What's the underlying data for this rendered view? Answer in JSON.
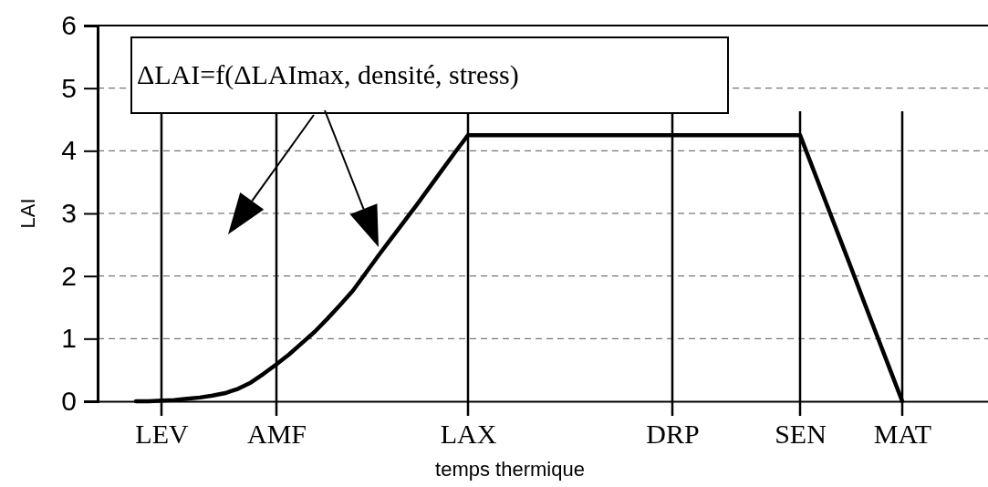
{
  "chart_data": {
    "type": "line",
    "xlabel": "temps thermique",
    "ylabel": "LAI",
    "categories": [
      null,
      null,
      null,
      null,
      null,
      "LEV",
      null,
      null,
      null,
      null,
      null,
      null,
      null,
      null,
      "AMF",
      null,
      null,
      null,
      null,
      null,
      null,
      null,
      null,
      null,
      null,
      null,
      null,
      null,
      null,
      "LAX",
      null,
      null,
      null,
      null,
      null,
      null,
      null,
      null,
      null,
      null,
      null,
      null,
      null,
      null,
      null,
      "DRP",
      null,
      null,
      null,
      null,
      null,
      null,
      null,
      null,
      null,
      "SEN",
      null,
      null,
      null,
      null,
      null,
      null,
      null,
      "MAT",
      null,
      null,
      null,
      null,
      null,
      null,
      null
    ],
    "ylim": [
      0,
      6
    ],
    "yticks": [
      0,
      1,
      2,
      3,
      4,
      5,
      6
    ],
    "grid": true,
    "marker": "none",
    "line_style": "solid",
    "series": [
      {
        "color": "#000000",
        "values": [
          null,
          null,
          null,
          0,
          0,
          0.01,
          0.02,
          0.04,
          0.06,
          0.09,
          0.13,
          0.2,
          0.3,
          0.44,
          0.59,
          0.75,
          0.93,
          1.11,
          1.32,
          1.54,
          1.77,
          2.05,
          2.33,
          2.6,
          2.87,
          3.14,
          3.42,
          3.7,
          3.98,
          4.25,
          4.25,
          4.25,
          4.25,
          4.25,
          4.25,
          4.25,
          4.25,
          4.25,
          4.25,
          4.25,
          4.25,
          4.25,
          4.25,
          4.25,
          4.25,
          4.25,
          4.25,
          4.25,
          4.25,
          4.25,
          4.25,
          4.25,
          4.25,
          4.25,
          4.25,
          4.25,
          3.72,
          3.19,
          2.66,
          2.13,
          1.59,
          1.06,
          0.53,
          0,
          null,
          null,
          null,
          null,
          null,
          null,
          null
        ]
      }
    ],
    "annotations": [
      "ΔLAI=f(ΔLAImax, densité, stress)"
    ]
  }
}
